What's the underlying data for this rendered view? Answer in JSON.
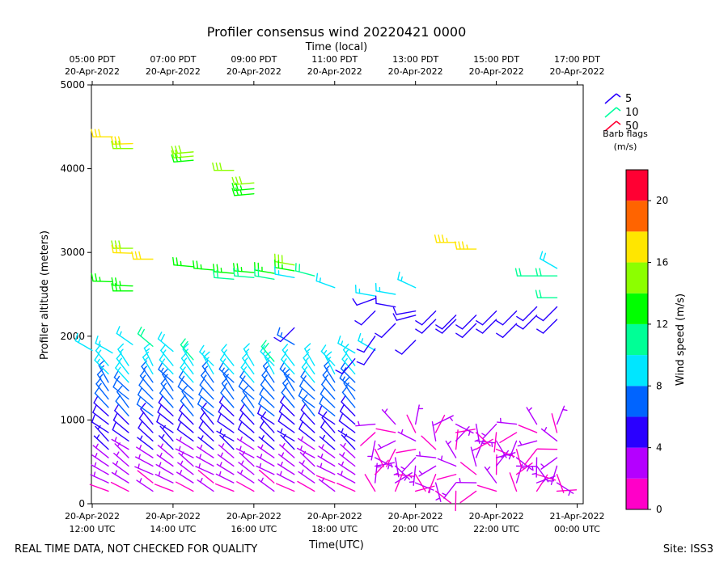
{
  "chart_data": {
    "type": "wind-barbs",
    "title": "Profiler consensus wind 20220421 0000",
    "top_axis_label": "Time (local)",
    "xlabel": "Time(UTC)",
    "ylabel": "Profiler altitude (meters)",
    "ylim": [
      0,
      5000
    ],
    "y_ticks": [
      0,
      1000,
      2000,
      3000,
      4000,
      5000
    ],
    "x_range_hours_utc": [
      11.98,
      24.15
    ],
    "bottom_ticks": [
      {
        "hour": 12,
        "line1": "20-Apr-2022",
        "line2": "12:00 UTC"
      },
      {
        "hour": 14,
        "line1": "20-Apr-2022",
        "line2": "14:00 UTC"
      },
      {
        "hour": 16,
        "line1": "20-Apr-2022",
        "line2": "16:00 UTC"
      },
      {
        "hour": 18,
        "line1": "20-Apr-2022",
        "line2": "18:00 UTC"
      },
      {
        "hour": 20,
        "line1": "20-Apr-2022",
        "line2": "20:00 UTC"
      },
      {
        "hour": 22,
        "line1": "20-Apr-2022",
        "line2": "22:00 UTC"
      },
      {
        "hour": 24,
        "line1": "21-Apr-2022",
        "line2": "00:00 UTC"
      }
    ],
    "top_ticks": [
      {
        "hour": 12,
        "line1": "05:00 PDT",
        "line2": "20-Apr-2022"
      },
      {
        "hour": 14,
        "line1": "07:00 PDT",
        "line2": "20-Apr-2022"
      },
      {
        "hour": 16,
        "line1": "09:00 PDT",
        "line2": "20-Apr-2022"
      },
      {
        "hour": 18,
        "line1": "11:00 PDT",
        "line2": "20-Apr-2022"
      },
      {
        "hour": 20,
        "line1": "13:00 PDT",
        "line2": "20-Apr-2022"
      },
      {
        "hour": 22,
        "line1": "15:00 PDT",
        "line2": "20-Apr-2022"
      },
      {
        "hour": 24,
        "line1": "17:00 PDT",
        "line2": "20-Apr-2022"
      }
    ],
    "barb_legend": {
      "title": "Barb flags",
      "units": "(m/s)",
      "entries": [
        {
          "label": "5",
          "color": "#2a00ff"
        },
        {
          "label": "10",
          "color": "#00ffa0"
        },
        {
          "label": "50",
          "color": "#ff0033"
        }
      ]
    },
    "colorbar": {
      "label": "Wind speed (m/s)",
      "range": [
        0,
        22
      ],
      "ticks": [
        0,
        4,
        8,
        12,
        16,
        20
      ],
      "bins": [
        {
          "from": 0,
          "to": 2,
          "color": "#ff00c8"
        },
        {
          "from": 2,
          "to": 4,
          "color": "#b400ff"
        },
        {
          "from": 4,
          "to": 6,
          "color": "#2a00ff"
        },
        {
          "from": 6,
          "to": 8,
          "color": "#0064ff"
        },
        {
          "from": 8,
          "to": 10,
          "color": "#00e6ff"
        },
        {
          "from": 10,
          "to": 12,
          "color": "#00ff96"
        },
        {
          "from": 12,
          "to": 14,
          "color": "#00ff00"
        },
        {
          "from": 14,
          "to": 16,
          "color": "#8cff00"
        },
        {
          "from": 16,
          "to": 18,
          "color": "#ffe600"
        },
        {
          "from": 18,
          "to": 20,
          "color": "#ff6400"
        },
        {
          "from": 20,
          "to": 22,
          "color": "#ff0033"
        }
      ]
    },
    "low_level_columns_hours": [
      12.4,
      12.9,
      13.5,
      14.0,
      14.5,
      15.0,
      15.5,
      16.0,
      16.5,
      17.0,
      17.5,
      18.0,
      18.5,
      19.0,
      19.5,
      20.0,
      20.5,
      21.0,
      21.5,
      22.0,
      22.5,
      23.0,
      23.5
    ],
    "low_level_heights_m": [
      150,
      250,
      350,
      450,
      550,
      650,
      750,
      850,
      950,
      1050,
      1150,
      1250,
      1350,
      1450,
      1550,
      1650
    ],
    "upper_observations": [
      {
        "t": 12.5,
        "h": 4380,
        "speed": 16.5,
        "dir": 270
      },
      {
        "t": 12.5,
        "h": 2650,
        "speed": 13.0,
        "dir": 272
      },
      {
        "t": 13.0,
        "h": 4300,
        "speed": 16.0,
        "dir": 268
      },
      {
        "t": 13.0,
        "h": 4240,
        "speed": 15.0,
        "dir": 270
      },
      {
        "t": 13.0,
        "h": 3050,
        "speed": 15.5,
        "dir": 270
      },
      {
        "t": 13.0,
        "h": 2990,
        "speed": 16.5,
        "dir": 272
      },
      {
        "t": 13.0,
        "h": 2600,
        "speed": 13.0,
        "dir": 272
      },
      {
        "t": 13.0,
        "h": 2540,
        "speed": 13.0,
        "dir": 270
      },
      {
        "t": 13.5,
        "h": 2920,
        "speed": 16.0,
        "dir": 270
      },
      {
        "t": 14.5,
        "h": 4200,
        "speed": 15.0,
        "dir": 265
      },
      {
        "t": 14.5,
        "h": 4150,
        "speed": 14.0,
        "dir": 265
      },
      {
        "t": 14.5,
        "h": 4100,
        "speed": 13.0,
        "dir": 265
      },
      {
        "t": 14.5,
        "h": 2830,
        "speed": 12.0,
        "dir": 275
      },
      {
        "t": 15.0,
        "h": 2790,
        "speed": 12.5,
        "dir": 275
      },
      {
        "t": 15.5,
        "h": 3980,
        "speed": 14.5,
        "dir": 270
      },
      {
        "t": 16.0,
        "h": 3830,
        "speed": 15.0,
        "dir": 265
      },
      {
        "t": 16.0,
        "h": 3760,
        "speed": 13.5,
        "dir": 265
      },
      {
        "t": 16.0,
        "h": 3700,
        "speed": 13.5,
        "dir": 265
      },
      {
        "t": 15.5,
        "h": 2750,
        "speed": 12.0,
        "dir": 275
      },
      {
        "t": 15.5,
        "h": 2680,
        "speed": 11.0,
        "dir": 275
      },
      {
        "t": 16.0,
        "h": 2760,
        "speed": 13.0,
        "dir": 275
      },
      {
        "t": 16.0,
        "h": 2700,
        "speed": 10.0,
        "dir": 275
      },
      {
        "t": 16.5,
        "h": 2750,
        "speed": 12.5,
        "dir": 280
      },
      {
        "t": 16.5,
        "h": 2680,
        "speed": 10.5,
        "dir": 280
      },
      {
        "t": 17.0,
        "h": 2850,
        "speed": 15.0,
        "dir": 280
      },
      {
        "t": 17.0,
        "h": 2780,
        "speed": 12.5,
        "dir": 280
      },
      {
        "t": 17.0,
        "h": 2700,
        "speed": 9.0,
        "dir": 280
      },
      {
        "t": 17.5,
        "h": 2720,
        "speed": 10.0,
        "dir": 285
      },
      {
        "t": 18.0,
        "h": 2580,
        "speed": 9.0,
        "dir": 290
      },
      {
        "t": 19.0,
        "h": 2480,
        "speed": 9.0,
        "dir": 280
      },
      {
        "t": 19.5,
        "h": 2500,
        "speed": 8.5,
        "dir": 280
      },
      {
        "t": 20.0,
        "h": 2580,
        "speed": 9.0,
        "dir": 295
      },
      {
        "t": 21.0,
        "h": 3120,
        "speed": 17.0,
        "dir": 270
      },
      {
        "t": 21.5,
        "h": 3040,
        "speed": 17.0,
        "dir": 270
      },
      {
        "t": 23.0,
        "h": 2720,
        "speed": 10.5,
        "dir": 270
      },
      {
        "t": 23.5,
        "h": 2720,
        "speed": 10.5,
        "dir": 270
      },
      {
        "t": 23.5,
        "h": 2810,
        "speed": 9.5,
        "dir": 300
      },
      {
        "t": 23.5,
        "h": 2460,
        "speed": 11.0,
        "dir": 270
      },
      {
        "t": 12.0,
        "h": 1830,
        "speed": 8.5,
        "dir": 300
      },
      {
        "t": 12.5,
        "h": 1800,
        "speed": 9.0,
        "dir": 300
      },
      {
        "t": 13.0,
        "h": 1900,
        "speed": 9.0,
        "dir": 305
      },
      {
        "t": 13.5,
        "h": 1880,
        "speed": 10.0,
        "dir": 310
      },
      {
        "t": 14.0,
        "h": 1820,
        "speed": 9.5,
        "dir": 310
      },
      {
        "t": 14.5,
        "h": 1720,
        "speed": 10.0,
        "dir": 320
      },
      {
        "t": 16.5,
        "h": 1700,
        "speed": 10.0,
        "dir": 320
      },
      {
        "t": 17.0,
        "h": 1900,
        "speed": 7.5,
        "dir": 300
      },
      {
        "t": 18.5,
        "h": 1800,
        "speed": 8.5,
        "dir": 300
      },
      {
        "t": 19.0,
        "h": 1830,
        "speed": 9.0,
        "dir": 300
      },
      {
        "t": 18.5,
        "h": 1730,
        "speed": 4.5,
        "dir": 220
      },
      {
        "t": 19.0,
        "h": 1850,
        "speed": 4.5,
        "dir": 215
      },
      {
        "t": 19.0,
        "h": 2000,
        "speed": 4.5,
        "dir": 215
      },
      {
        "t": 19.5,
        "h": 2350,
        "speed": 4.5,
        "dir": 280
      },
      {
        "t": 20.0,
        "h": 2300,
        "speed": 5.0,
        "dir": 260
      },
      {
        "t": 20.0,
        "h": 2250,
        "speed": 5.0,
        "dir": 255
      },
      {
        "t": 20.0,
        "h": 1950,
        "speed": 5.0,
        "dir": 225
      },
      {
        "t": 19.0,
        "h": 2300,
        "speed": 5.0,
        "dir": 225
      },
      {
        "t": 19.0,
        "h": 2450,
        "speed": 5.0,
        "dir": 250
      },
      {
        "t": 20.5,
        "h": 2300,
        "speed": 5.0,
        "dir": 225
      },
      {
        "t": 20.5,
        "h": 2200,
        "speed": 5.0,
        "dir": 225
      },
      {
        "t": 21.0,
        "h": 2250,
        "speed": 5.0,
        "dir": 225
      },
      {
        "t": 21.0,
        "h": 2200,
        "speed": 5.0,
        "dir": 225
      },
      {
        "t": 21.5,
        "h": 2250,
        "speed": 5.0,
        "dir": 225
      },
      {
        "t": 21.5,
        "h": 2150,
        "speed": 5.0,
        "dir": 225
      },
      {
        "t": 22.0,
        "h": 2300,
        "speed": 5.0,
        "dir": 225
      },
      {
        "t": 22.0,
        "h": 2200,
        "speed": 5.0,
        "dir": 225
      },
      {
        "t": 22.5,
        "h": 2300,
        "speed": 5.0,
        "dir": 225
      },
      {
        "t": 22.5,
        "h": 2150,
        "speed": 5.0,
        "dir": 225
      },
      {
        "t": 23.0,
        "h": 2350,
        "speed": 5.0,
        "dir": 225
      },
      {
        "t": 23.0,
        "h": 2250,
        "speed": 5.0,
        "dir": 225
      },
      {
        "t": 23.5,
        "h": 2350,
        "speed": 5.0,
        "dir": 225
      },
      {
        "t": 23.5,
        "h": 2200,
        "speed": 5.0,
        "dir": 225
      },
      {
        "t": 17.0,
        "h": 2100,
        "speed": 5.0,
        "dir": 225
      },
      {
        "t": 19.5,
        "h": 2150,
        "speed": 5.0,
        "dir": 225
      }
    ],
    "footer_left": "REAL TIME DATA, NOT CHECKED FOR QUALITY",
    "footer_right": "Site: ISS3"
  }
}
